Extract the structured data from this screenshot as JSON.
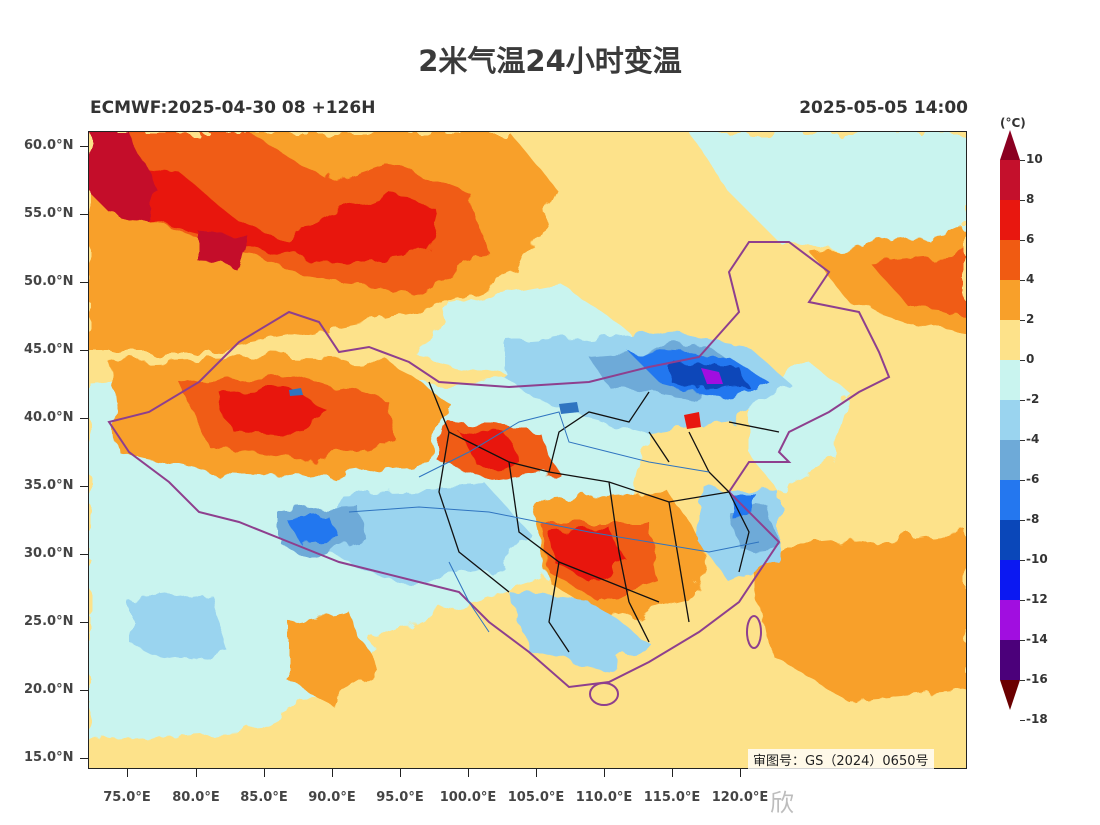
{
  "title": "2米气温24小时变温",
  "subtitle_left": "ECMWF:2025-04-30 08 +126H",
  "subtitle_right": "2025-05-05 14:00",
  "review_number": "审图号：GS（2024）0650号",
  "watermark": "欣",
  "lat_labels": [
    "60.0°N",
    "55.0°N",
    "50.0°N",
    "45.0°N",
    "40.0°N",
    "35.0°N",
    "30.0°N",
    "25.0°N",
    "20.0°N",
    "15.0°N"
  ],
  "lon_labels": [
    "75.0°E",
    "80.0°E",
    "85.0°E",
    "90.0°E",
    "95.0°E",
    "100.0°E",
    "105.0°E",
    "110.0°E",
    "115.0°E",
    "120.0°E"
  ],
  "colorbar": {
    "unit": "(°C)",
    "labels": [
      "10",
      "8",
      "6",
      "4",
      "2",
      "0",
      "-2",
      "-4",
      "-6",
      "-8",
      "-10",
      "-12",
      "-14",
      "-16",
      "-18"
    ],
    "colors": [
      "#8b0021",
      "#c4102c",
      "#e8170f",
      "#f05b12",
      "#f8a02a",
      "#fde28a",
      "#c9f4ef",
      "#9ad4ef",
      "#6eaad8",
      "#2477ef",
      "#0a47b9",
      "#0b18f2",
      "#a10ee0",
      "#4b007a",
      "#6b0000"
    ]
  },
  "chart_data": {
    "type": "heatmap",
    "title": "2米气温24小时变温",
    "xlabel": "",
    "ylabel": "",
    "xlim": [
      72,
      135
    ],
    "ylim": [
      14,
      61
    ],
    "unit": "°C",
    "color_range": [
      -18,
      10
    ]
  }
}
